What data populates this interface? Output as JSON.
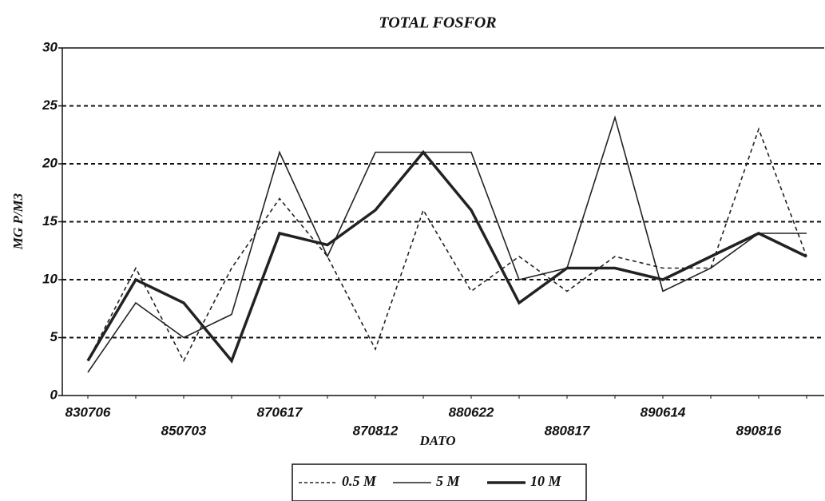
{
  "chart_data": {
    "type": "line",
    "title": "TOTAL FOSFOR",
    "x_label": "DATO",
    "y_label": "MG P/M3",
    "categories": [
      "830706",
      null,
      "850703",
      null,
      "870617",
      null,
      "870812",
      null,
      "880622",
      null,
      "880817",
      null,
      "890614",
      null,
      "890816",
      null
    ],
    "series": [
      {
        "name": "0.5 M",
        "color": "#222222",
        "dash": true,
        "line_width": 1.6,
        "values": [
          3,
          11,
          3,
          11,
          17,
          12,
          4,
          16,
          9,
          12,
          9,
          12,
          11,
          11,
          23,
          12
        ]
      },
      {
        "name": "5 M",
        "color": "#222222",
        "dash": false,
        "line_width": 1.6,
        "values": [
          2,
          8,
          5,
          7,
          21,
          12,
          21,
          21,
          21,
          10,
          11,
          24,
          9,
          11,
          14,
          14
        ]
      },
      {
        "name": "10 M",
        "color": "#222222",
        "dash": false,
        "line_width": 3.5,
        "values": [
          3,
          10,
          8,
          3,
          14,
          13,
          16,
          21,
          16,
          8,
          11,
          11,
          10,
          12,
          14,
          12
        ]
      }
    ],
    "ylim": [
      0,
      30
    ],
    "yticks": [
      0,
      5,
      10,
      15,
      20,
      25,
      30
    ],
    "grid": true,
    "legend": "bottom"
  }
}
